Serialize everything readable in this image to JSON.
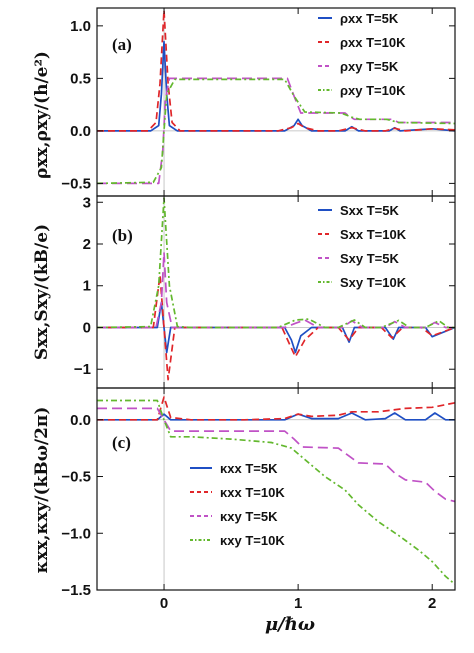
{
  "colors": {
    "blue": "#1f4fc4",
    "red": "#e0262a",
    "purple": "#c052c6",
    "green": "#63b82e",
    "axis": "#111111"
  },
  "chart_data": [
    {
      "type": "line",
      "panel_label": "(a)",
      "ylabel": "ρxx,ρxy/(h/e²)",
      "xlabel": "",
      "xlim": [
        -0.5,
        2.17
      ],
      "ylim": [
        -0.62,
        1.17
      ],
      "yticks": [
        "-0.5",
        "0.0",
        "0.5",
        "1.0"
      ],
      "ytick_values": [
        -0.5,
        0.0,
        0.5,
        1.0
      ],
      "legend_position": "top-right",
      "series": [
        {
          "name": "ρxx T=5K",
          "color": "blue",
          "dash": "solid",
          "x": [
            -0.5,
            -0.1,
            -0.04,
            -0.02,
            0.0,
            0.02,
            0.04,
            0.1,
            0.9,
            0.97,
            1.0,
            1.03,
            1.1,
            1.35,
            1.4,
            1.45,
            1.68,
            1.72,
            1.76,
            2.0,
            2.17
          ],
          "y": [
            0.0,
            0.0,
            0.05,
            0.35,
            0.85,
            0.35,
            0.05,
            0.0,
            0.0,
            0.05,
            0.11,
            0.05,
            0.0,
            0.0,
            0.04,
            0.0,
            0.0,
            0.03,
            0.0,
            0.02,
            0.0
          ]
        },
        {
          "name": "ρxx T=10K",
          "color": "red",
          "dash": "dash",
          "x": [
            -0.5,
            -0.12,
            -0.06,
            -0.03,
            0.0,
            0.03,
            0.06,
            0.12,
            0.85,
            0.95,
            1.0,
            1.05,
            1.15,
            1.3,
            1.4,
            1.5,
            1.65,
            1.72,
            1.8,
            2.0,
            2.17
          ],
          "y": [
            0.0,
            0.0,
            0.08,
            0.45,
            1.15,
            0.45,
            0.08,
            0.0,
            0.0,
            0.03,
            0.07,
            0.03,
            0.0,
            0.0,
            0.03,
            0.0,
            0.0,
            0.025,
            0.0,
            0.02,
            0.01
          ]
        },
        {
          "name": "ρxy T=5K",
          "color": "purple",
          "dash": "longdash",
          "x": [
            -0.5,
            -0.04,
            -0.01,
            0.01,
            0.04,
            0.1,
            0.92,
            0.97,
            1.02,
            1.35,
            1.38,
            1.42,
            1.7,
            1.75,
            2.17
          ],
          "y": [
            -0.5,
            -0.5,
            -0.2,
            0.3,
            0.5,
            0.5,
            0.5,
            0.33,
            0.17,
            0.17,
            0.14,
            0.11,
            0.11,
            0.08,
            0.08
          ]
        },
        {
          "name": "ρxy T=10K",
          "color": "green",
          "dash": "dashdot",
          "x": [
            -0.5,
            -0.08,
            -0.02,
            0.0,
            0.02,
            0.08,
            0.9,
            0.97,
            1.05,
            1.32,
            1.4,
            1.46,
            1.66,
            1.75,
            2.17
          ],
          "y": [
            -0.5,
            -0.49,
            -0.35,
            0.0,
            0.35,
            0.49,
            0.49,
            0.33,
            0.18,
            0.17,
            0.13,
            0.11,
            0.11,
            0.08,
            0.07
          ]
        }
      ]
    },
    {
      "type": "line",
      "panel_label": "(b)",
      "ylabel": "Sxx,Sxy/(kB/e)",
      "xlabel": "",
      "xlim": [
        -0.5,
        2.17
      ],
      "ylim": [
        -1.45,
        3.15
      ],
      "yticks": [
        "-1",
        "0",
        "1",
        "2",
        "3"
      ],
      "ytick_values": [
        -1,
        0,
        1,
        2,
        3
      ],
      "legend_position": "top-right",
      "series": [
        {
          "name": "Sxx T=5K",
          "color": "blue",
          "dash": "solid",
          "x": [
            -0.5,
            -0.05,
            -0.02,
            0.0,
            0.02,
            0.05,
            0.1,
            0.9,
            0.95,
            0.98,
            1.02,
            1.1,
            1.33,
            1.38,
            1.42,
            1.65,
            1.71,
            1.75,
            1.95,
            2.0,
            2.17
          ],
          "y": [
            0.0,
            0.0,
            0.6,
            0.0,
            -0.6,
            0.0,
            0.0,
            0.0,
            -0.3,
            -0.6,
            -0.2,
            0.0,
            0.0,
            -0.35,
            0.0,
            0.0,
            -0.28,
            0.0,
            0.0,
            -0.22,
            0.0
          ]
        },
        {
          "name": "Sxx T=10K",
          "color": "red",
          "dash": "dash",
          "x": [
            -0.5,
            -0.08,
            -0.03,
            0.0,
            0.03,
            0.08,
            0.15,
            0.88,
            0.95,
            0.98,
            1.05,
            1.15,
            1.3,
            1.38,
            1.45,
            1.62,
            1.7,
            1.78,
            1.92,
            2.0,
            2.17
          ],
          "y": [
            0.0,
            0.0,
            1.25,
            0.0,
            -1.25,
            0.0,
            0.0,
            0.0,
            -0.5,
            -0.7,
            -0.3,
            0.0,
            0.0,
            -0.3,
            0.0,
            0.0,
            -0.25,
            0.0,
            0.0,
            -0.2,
            0.0
          ]
        },
        {
          "name": "Sxy T=5K",
          "color": "purple",
          "dash": "longdash",
          "x": [
            -0.5,
            -0.06,
            -0.02,
            0.0,
            0.02,
            0.06,
            0.12,
            0.9,
            0.98,
            1.05,
            1.15,
            1.33,
            1.4,
            1.48,
            1.65,
            1.72,
            1.8,
            1.95,
            2.02,
            2.1,
            2.17
          ],
          "y": [
            0.0,
            0.0,
            0.6,
            1.8,
            0.6,
            0.0,
            0.0,
            0.0,
            0.1,
            0.18,
            0.0,
            0.0,
            0.16,
            0.0,
            0.0,
            0.14,
            0.0,
            0.0,
            0.12,
            0.0,
            0.0
          ]
        },
        {
          "name": "Sxy T=10K",
          "color": "green",
          "dash": "dashdot",
          "x": [
            -0.5,
            -0.1,
            -0.04,
            0.0,
            0.04,
            0.1,
            0.2,
            0.85,
            0.98,
            1.08,
            1.2,
            1.3,
            1.42,
            1.5,
            1.62,
            1.75,
            1.83,
            1.95,
            2.05,
            2.12,
            2.17
          ],
          "y": [
            0.0,
            0.02,
            1.0,
            3.1,
            1.0,
            0.02,
            0.0,
            0.0,
            0.18,
            0.2,
            0.0,
            0.0,
            0.18,
            0.0,
            0.0,
            0.17,
            0.0,
            0.0,
            0.16,
            0.0,
            0.0
          ]
        }
      ]
    },
    {
      "type": "line",
      "panel_label": "(c)",
      "ylabel": "κxx,κxy/(kBω/2π)",
      "xlabel": "μ/ℏω",
      "xlim": [
        -0.5,
        2.17
      ],
      "ylim": [
        -1.5,
        0.28
      ],
      "yticks": [
        "-1.5",
        "-1.0",
        "-0.5",
        "0.0"
      ],
      "ytick_values": [
        -1.5,
        -1.0,
        -0.5,
        0.0
      ],
      "xticks": [
        "0",
        "1",
        "2"
      ],
      "xtick_values": [
        0,
        1,
        2
      ],
      "legend_position": "bottom-left",
      "series": [
        {
          "name": "κxx T=5K",
          "color": "blue",
          "dash": "solid",
          "x": [
            -0.5,
            -0.05,
            0.0,
            0.05,
            0.9,
            1.0,
            1.1,
            1.3,
            1.4,
            1.5,
            1.65,
            1.72,
            1.8,
            1.95,
            2.02,
            2.1,
            2.17
          ],
          "y": [
            0.0,
            0.0,
            0.05,
            0.0,
            0.0,
            0.05,
            0.01,
            0.01,
            0.06,
            0.0,
            0.01,
            0.06,
            0.0,
            0.0,
            0.06,
            0.0,
            0.0
          ]
        },
        {
          "name": "κxx T=10K",
          "color": "red",
          "dash": "dash",
          "x": [
            -0.5,
            -0.05,
            0.0,
            0.05,
            0.2,
            0.6,
            0.9,
            1.0,
            1.1,
            1.3,
            1.4,
            1.6,
            1.8,
            2.0,
            2.17
          ],
          "y": [
            0.0,
            0.0,
            0.2,
            0.02,
            0.0,
            0.0,
            0.01,
            0.05,
            0.03,
            0.04,
            0.07,
            0.07,
            0.1,
            0.11,
            0.15
          ]
        },
        {
          "name": "κxy T=5K",
          "color": "purple",
          "dash": "longdash",
          "x": [
            -0.5,
            -0.05,
            0.0,
            0.05,
            0.9,
            0.97,
            1.03,
            1.3,
            1.38,
            1.45,
            1.65,
            1.72,
            1.8,
            1.95,
            2.02,
            2.1,
            2.17
          ],
          "y": [
            0.1,
            0.1,
            0.0,
            -0.1,
            -0.1,
            -0.17,
            -0.24,
            -0.25,
            -0.32,
            -0.38,
            -0.39,
            -0.47,
            -0.53,
            -0.55,
            -0.63,
            -0.7,
            -0.72
          ]
        },
        {
          "name": "κxy T=10K",
          "color": "green",
          "dash": "dashdot",
          "x": [
            -0.5,
            -0.05,
            0.0,
            0.05,
            0.2,
            0.5,
            0.8,
            0.95,
            1.05,
            1.2,
            1.35,
            1.45,
            1.6,
            1.75,
            1.9,
            2.0,
            2.1,
            2.17
          ],
          "y": [
            0.17,
            0.17,
            0.0,
            -0.15,
            -0.15,
            -0.17,
            -0.2,
            -0.25,
            -0.35,
            -0.5,
            -0.62,
            -0.75,
            -0.9,
            -1.02,
            -1.15,
            -1.25,
            -1.38,
            -1.45
          ]
        }
      ]
    }
  ]
}
